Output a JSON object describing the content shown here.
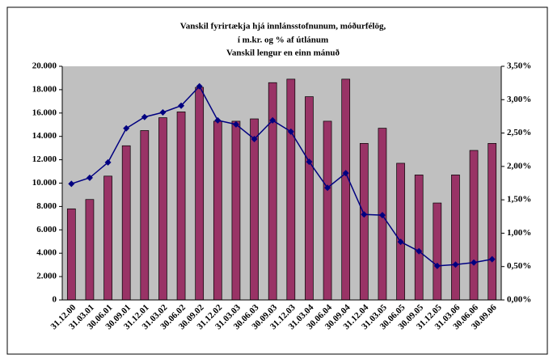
{
  "chart_data": {
    "type": "bar-line",
    "title": [
      "Vanskil fyrirtækja hjá innlánsstofnunum, móðurfélög,",
      "í m.kr. og % af útlánum",
      "Vanskil lengur en einn mánuð"
    ],
    "categories": [
      "31.12.00",
      "31.03.01",
      "30.06.01",
      "30.09.01",
      "31.12.01",
      "31.03.02",
      "30.06.02",
      "30.09.02",
      "31.12.02",
      "31.03.03",
      "30.06.03",
      "30.09.03",
      "31.12.03",
      "31.03.04",
      "30.06.04",
      "30.09.04",
      "31.12.04",
      "31.03.05",
      "30.06.05",
      "30.09.05",
      "31.12.05",
      "31.03.06",
      "30.06.06",
      "30.09.06"
    ],
    "series": [
      {
        "type": "bar",
        "color": "#993366",
        "values": [
          7800,
          8600,
          10600,
          13200,
          14500,
          15600,
          16100,
          18200,
          15300,
          15300,
          15500,
          18600,
          18900,
          17400,
          15300,
          18900,
          13400,
          14700,
          11700,
          10700,
          8300,
          10700,
          12800,
          13400
        ]
      },
      {
        "type": "line",
        "axis": "y2",
        "color": "#000080",
        "values": [
          1.74,
          1.83,
          2.06,
          2.57,
          2.74,
          2.81,
          2.91,
          3.2,
          2.69,
          2.63,
          2.41,
          2.69,
          2.52,
          2.07,
          1.68,
          1.9,
          1.28,
          1.27,
          0.87,
          0.73,
          0.51,
          0.53,
          0.56,
          0.61
        ]
      }
    ],
    "ylim": [
      0,
      20000
    ],
    "yticks": [
      0,
      {
        "value": 2000,
        "label": "2.000"
      },
      {
        "value": 4000,
        "label": "4.000"
      },
      {
        "value": 6000,
        "label": "6.000"
      },
      {
        "value": 8000,
        "label": "8.000"
      },
      {
        "value": 10000,
        "label": "10.000"
      },
      {
        "value": 12000,
        "label": "12.000"
      },
      {
        "value": 14000,
        "label": "14.000"
      },
      {
        "value": 16000,
        "label": "16.000"
      },
      {
        "value": 18000,
        "label": "18.000"
      },
      {
        "value": 20000,
        "label": "20.000"
      }
    ],
    "y2lim": [
      0,
      3.5
    ],
    "y2ticks": [
      {
        "value": 0,
        "label": "0,00%"
      },
      {
        "value": 0.5,
        "label": "0,50%"
      },
      {
        "value": 1,
        "label": "1,00%"
      },
      {
        "value": 1.5,
        "label": "1,50%"
      },
      {
        "value": 2,
        "label": "2,00%"
      },
      {
        "value": 2.5,
        "label": "2,50%"
      },
      {
        "value": 3,
        "label": "3,00%"
      },
      {
        "value": 3.5,
        "label": "3,50%"
      }
    ],
    "plot_background": "#c0c0c0"
  }
}
